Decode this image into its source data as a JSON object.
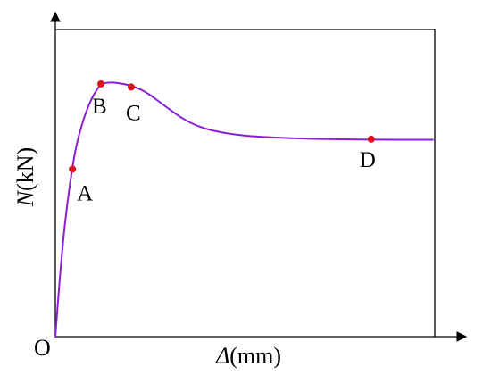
{
  "chart_data": {
    "type": "line",
    "title": "",
    "xlabel": {
      "symbol": "Δ",
      "unit": "(mm)"
    },
    "ylabel": {
      "symbol": "N",
      "unit": "(kN)"
    },
    "origin_label": "O",
    "curve": [
      [
        0.0,
        0.0
      ],
      [
        0.5,
        0.22
      ],
      [
        1.0,
        0.4
      ],
      [
        1.6,
        0.56
      ],
      [
        2.2,
        0.68
      ],
      [
        3.0,
        0.78
      ],
      [
        3.8,
        0.85
      ],
      [
        4.5,
        0.89
      ],
      [
        5.0,
        0.906
      ],
      [
        6.0,
        0.91
      ],
      [
        7.0,
        0.906
      ],
      [
        8.0,
        0.898
      ],
      [
        9.0,
        0.885
      ],
      [
        10.0,
        0.865
      ],
      [
        11.0,
        0.84
      ],
      [
        12.0,
        0.815
      ],
      [
        13.5,
        0.78
      ],
      [
        15.0,
        0.755
      ],
      [
        17.0,
        0.735
      ],
      [
        20.0,
        0.72
      ],
      [
        24.0,
        0.712
      ],
      [
        28.0,
        0.708
      ],
      [
        32.0,
        0.706
      ],
      [
        36.0,
        0.705
      ],
      [
        39.8,
        0.705
      ]
    ],
    "key_points": [
      {
        "label": "A",
        "x": 1.8,
        "y": 0.6
      },
      {
        "label": "B",
        "x": 4.8,
        "y": 0.905
      },
      {
        "label": "C",
        "x": 8.0,
        "y": 0.894
      },
      {
        "label": "D",
        "x": 33.3,
        "y": 0.707
      }
    ],
    "xlim": [
      0,
      40
    ],
    "ylim": [
      0,
      1.1
    ],
    "grid": false,
    "colors": {
      "curve": "#8a1ed8",
      "points": "#e0141a",
      "axes": "#000000"
    }
  }
}
